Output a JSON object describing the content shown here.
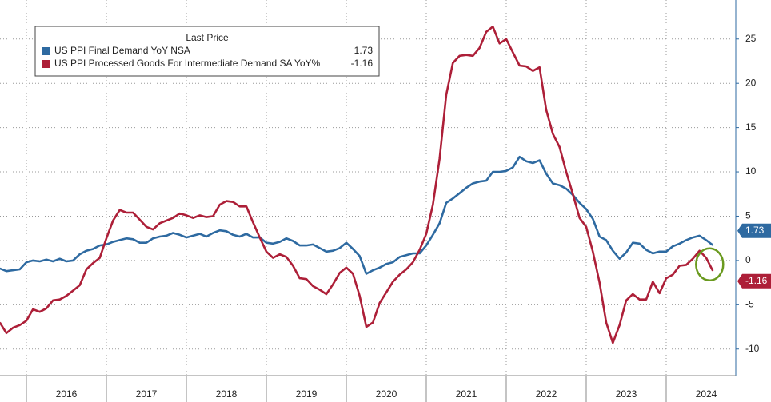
{
  "chart_data": {
    "type": "line",
    "legend_title": "Last Price",
    "x": [
      2015.667,
      2015.75,
      2015.833,
      2015.917,
      2016,
      2016.083,
      2016.167,
      2016.25,
      2016.333,
      2016.417,
      2016.5,
      2016.583,
      2016.667,
      2016.75,
      2016.833,
      2016.917,
      2017,
      2017.083,
      2017.167,
      2017.25,
      2017.333,
      2017.417,
      2017.5,
      2017.583,
      2017.667,
      2017.75,
      2017.833,
      2017.917,
      2018,
      2018.083,
      2018.167,
      2018.25,
      2018.333,
      2018.417,
      2018.5,
      2018.583,
      2018.667,
      2018.75,
      2018.833,
      2018.917,
      2019,
      2019.083,
      2019.167,
      2019.25,
      2019.333,
      2019.417,
      2019.5,
      2019.583,
      2019.667,
      2019.75,
      2019.833,
      2019.917,
      2020,
      2020.083,
      2020.167,
      2020.25,
      2020.333,
      2020.417,
      2020.5,
      2020.583,
      2020.667,
      2020.75,
      2020.833,
      2020.917,
      2021,
      2021.083,
      2021.167,
      2021.25,
      2021.333,
      2021.417,
      2021.5,
      2021.583,
      2021.667,
      2021.75,
      2021.833,
      2021.917,
      2022,
      2022.083,
      2022.167,
      2022.25,
      2022.333,
      2022.417,
      2022.5,
      2022.583,
      2022.667,
      2022.75,
      2022.833,
      2022.917,
      2023,
      2023.083,
      2023.167,
      2023.25,
      2023.333,
      2023.417,
      2023.5,
      2023.583,
      2023.667,
      2023.75,
      2023.833,
      2023.917,
      2024,
      2024.083,
      2024.167,
      2024.25,
      2024.333,
      2024.417,
      2024.5,
      2024.583
    ],
    "series": [
      {
        "name": "US PPI Final Demand YoY NSA",
        "color": "#2e6aa1",
        "values": [
          -0.9,
          -1.2,
          -1.1,
          -1.0,
          -0.2,
          0.0,
          -0.1,
          0.1,
          -0.1,
          0.2,
          -0.1,
          0.0,
          0.7,
          1.1,
          1.3,
          1.7,
          1.8,
          2.1,
          2.3,
          2.5,
          2.4,
          2.0,
          2.0,
          2.5,
          2.7,
          2.8,
          3.1,
          2.9,
          2.6,
          2.8,
          3.0,
          2.7,
          3.1,
          3.4,
          3.3,
          2.9,
          2.7,
          3.0,
          2.6,
          2.6,
          2.0,
          1.9,
          2.1,
          2.5,
          2.2,
          1.7,
          1.7,
          1.8,
          1.4,
          1.0,
          1.1,
          1.4,
          2.0,
          1.3,
          0.5,
          -1.5,
          -1.1,
          -0.8,
          -0.4,
          -0.2,
          0.4,
          0.6,
          0.8,
          0.8,
          1.7,
          2.9,
          4.2,
          6.5,
          7.0,
          7.6,
          8.2,
          8.7,
          8.9,
          9.0,
          10.0,
          10.0,
          10.1,
          10.5,
          11.7,
          11.2,
          11.0,
          11.3,
          9.8,
          8.7,
          8.5,
          8.1,
          7.4,
          6.5,
          5.8,
          4.7,
          2.7,
          2.3,
          1.1,
          0.2,
          0.9,
          2.0,
          1.9,
          1.2,
          0.8,
          1.0,
          1.0,
          1.6,
          1.9,
          2.3,
          2.6,
          2.8,
          2.3,
          1.73
        ]
      },
      {
        "name": "US PPI Processed Goods For Intermediate Demand SA YoY%",
        "color": "#ad1f38",
        "values": [
          -7.0,
          -8.2,
          -7.6,
          -7.3,
          -6.8,
          -5.5,
          -5.8,
          -5.4,
          -4.5,
          -4.4,
          -4.0,
          -3.4,
          -2.8,
          -1.0,
          -0.3,
          0.3,
          2.5,
          4.5,
          5.7,
          5.4,
          5.4,
          4.6,
          3.8,
          3.5,
          4.2,
          4.5,
          4.8,
          5.3,
          5.1,
          4.8,
          5.1,
          4.9,
          5.0,
          6.3,
          6.7,
          6.6,
          6.1,
          6.1,
          4.3,
          2.6,
          1.0,
          0.3,
          0.7,
          0.4,
          -0.6,
          -2.0,
          -2.1,
          -2.9,
          -3.3,
          -3.8,
          -2.7,
          -1.4,
          -0.8,
          -1.5,
          -4.0,
          -7.5,
          -7.0,
          -4.8,
          -3.6,
          -2.4,
          -1.6,
          -1.0,
          -0.2,
          1.2,
          3.0,
          6.3,
          11.5,
          18.7,
          22.3,
          23.1,
          23.2,
          23.1,
          24.0,
          25.8,
          26.4,
          24.5,
          25.0,
          23.5,
          22.0,
          21.9,
          21.4,
          21.8,
          17.0,
          14.3,
          12.8,
          10.0,
          7.5,
          4.8,
          3.8,
          1.0,
          -2.5,
          -7.0,
          -9.3,
          -7.3,
          -4.5,
          -3.8,
          -4.4,
          -4.4,
          -2.4,
          -3.7,
          -2.0,
          -1.6,
          -0.6,
          -0.5,
          0.2,
          1.1,
          0.3,
          -1.16
        ]
      }
    ],
    "xlim": [
      2015.67,
      2024.87
    ],
    "xticks": [
      2016,
      2017,
      2018,
      2019,
      2020,
      2021,
      2022,
      2023,
      2024
    ],
    "ylim": [
      -13,
      29.4
    ],
    "yticks": [
      -10,
      -5,
      0,
      5,
      10,
      15,
      20,
      25
    ],
    "grid": true
  }
}
